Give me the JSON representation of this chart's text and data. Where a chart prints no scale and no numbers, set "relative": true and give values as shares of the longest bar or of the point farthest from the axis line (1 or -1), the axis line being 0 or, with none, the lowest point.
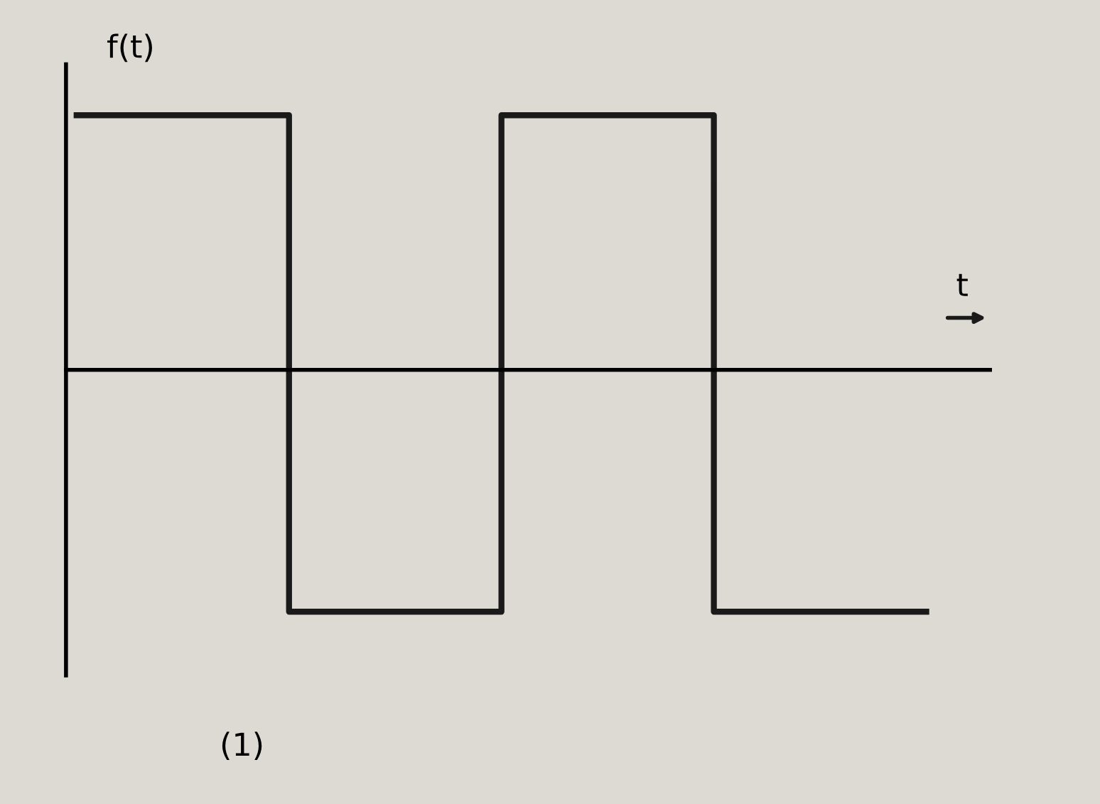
{
  "chart_data": {
    "type": "step",
    "relative": true,
    "categories": [
      null,
      null,
      null,
      null,
      null
    ],
    "series": [
      {
        "color": "#1a1a1a",
        "values": [
          1,
          -0.95,
          1,
          -0.95,
          -0.95
        ]
      }
    ],
    "xlabel": "t",
    "ylabel": "f(t)",
    "annotations": [
      "(1)"
    ]
  }
}
